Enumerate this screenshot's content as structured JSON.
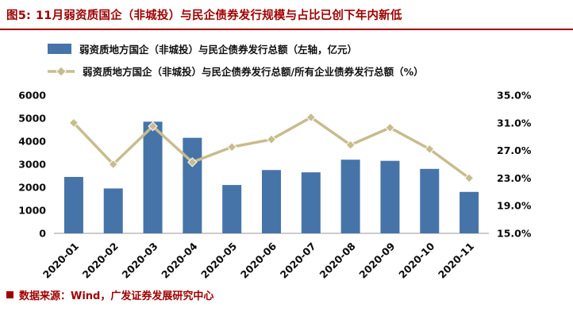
{
  "figure": {
    "label": "图5:",
    "title": "11月弱资质国企（非城投）与民企债券发行规模与占比已创下年内新低"
  },
  "legend": {
    "bar_label": "弱资质地方国企（非城投）与民企债券发行总额（左轴，亿元）",
    "line_label": "弱资质地方国企（非城投）与民企债券发行总额/所有企业债券发行总额（%）"
  },
  "footer": {
    "source": "数据来源：Wind，广发证券发展研究中心"
  },
  "colors": {
    "accent_red": "#A00000",
    "bar": "#4674A8",
    "line": "#C8BC8E",
    "axis_text": "#0a0a0a"
  },
  "chart_data": {
    "type": "bar",
    "subtype": "combo-bar-line-dual-axis",
    "categories": [
      "2020-01",
      "2020-02",
      "2020-03",
      "2020-04",
      "2020-05",
      "2020-06",
      "2020-07",
      "2020-08",
      "2020-09",
      "2020-10",
      "2020-11"
    ],
    "series": [
      {
        "name": "弱资质地方国企（非城投）与民企债券发行总额（左轴，亿元）",
        "type": "bar",
        "axis": "left",
        "values": [
          2450,
          1950,
          4850,
          4150,
          2100,
          2750,
          2650,
          3200,
          3150,
          2800,
          1800
        ]
      },
      {
        "name": "弱资质地方国企（非城投）与民企债券发行总额/所有企业债券发行总额（%）",
        "type": "line",
        "axis": "right",
        "values": [
          31.0,
          25.0,
          30.5,
          25.3,
          27.5,
          28.6,
          31.8,
          27.8,
          30.3,
          27.2,
          23.0
        ]
      }
    ],
    "left_axis": {
      "min": 0,
      "max": 6000,
      "tick_step": 1000,
      "tick_labels": [
        "0",
        "1000",
        "2000",
        "3000",
        "4000",
        "5000",
        "6000"
      ]
    },
    "right_axis": {
      "min": 15,
      "max": 35,
      "tick_labels": [
        "15.0%",
        "19.0%",
        "23.0%",
        "27.0%",
        "31.0%",
        "35.0%"
      ]
    },
    "grid": false,
    "legend_position": "top-left",
    "x_tick_rotation": -45
  }
}
